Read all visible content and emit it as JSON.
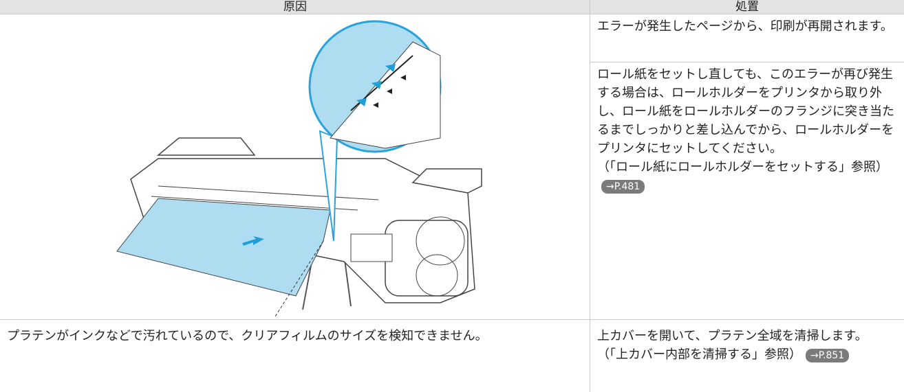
{
  "table": {
    "header": [
      "原因",
      "処置"
    ],
    "rows": [
      {
        "remedies": [
          "エラーが発生したページから、印刷が再開されます。",
          {
            "text": "ロール紙をセットし直しても、このエラーが再び発生する場合は、ロールホルダーをプリンタから取り外し、ロール紙をロールホルダーのフランジに突き当たるまでしっかりと差し込んでから、ロールホルダーをプリンタにセットしてください。",
            "ref": "（「ロール紙にロールホルダーをセットする」参照）",
            "link": "→P.481"
          }
        ]
      },
      {
        "cause": "プラテンがインクなどで汚れているので、クリアフィルムのサイズを検知できません。",
        "remedies": [
          {
            "text": "上カバーを開いて、プラテン全域を清掃します。",
            "ref": "（「上カバー内部を清掃する」参照）",
            "link": "→P.851"
          }
        ]
      }
    ]
  }
}
